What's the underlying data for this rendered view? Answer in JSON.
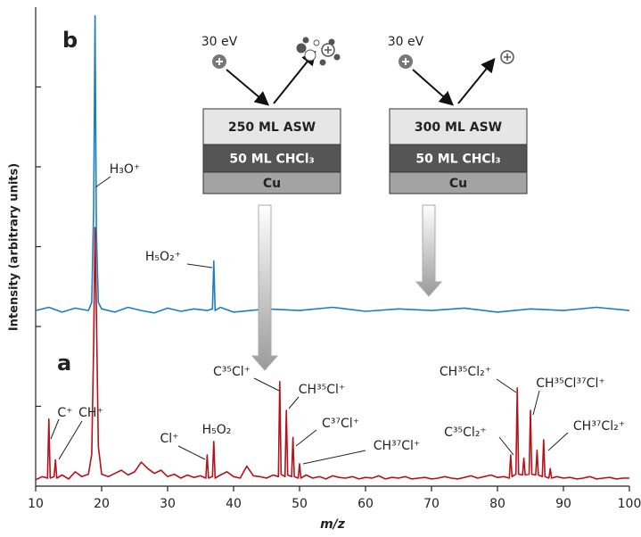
{
  "chart_data": {
    "type": "line",
    "xlabel": "m/z",
    "ylabel": "Intensity (arbitrary units)",
    "xlim": [
      10,
      100
    ],
    "xticks": [
      10,
      20,
      30,
      40,
      50,
      60,
      70,
      80,
      90,
      100
    ],
    "ylim": [
      0,
      6
    ],
    "yticks": [
      1,
      2,
      3,
      4,
      5
    ],
    "series": [
      {
        "color": "#b5121b",
        "x": [
          10,
          11,
          11.8,
          12,
          12.2,
          12.8,
          13,
          13.2,
          14,
          15,
          16,
          17,
          18,
          18.5,
          18.8,
          19,
          19.2,
          19.5,
          20,
          21,
          22,
          23,
          24,
          25,
          26,
          27,
          28,
          29,
          30,
          31,
          32,
          33,
          34,
          35,
          35.8,
          36,
          36.2,
          36.8,
          37,
          37.2,
          38,
          39,
          40,
          41,
          42,
          43,
          44,
          45,
          46,
          46.8,
          47,
          47.2,
          47.8,
          48,
          48.2,
          48.8,
          49,
          49.2,
          49.8,
          50,
          50.2,
          51,
          52,
          53,
          54,
          55,
          56,
          57,
          58,
          59,
          60,
          61,
          62,
          63,
          64,
          65,
          66,
          67,
          68,
          69,
          70,
          71,
          72,
          73,
          74,
          75,
          76,
          77,
          78,
          79,
          80,
          81,
          81.8,
          82,
          82.2,
          82.8,
          83,
          83.2,
          83.8,
          84,
          84.2,
          84.8,
          85,
          85.2,
          85.8,
          86,
          86.2,
          86.8,
          87,
          87.2,
          87.8,
          88,
          88.2,
          89,
          90,
          91,
          92,
          93,
          94,
          95,
          96,
          97,
          98,
          99,
          100
        ],
        "values": [
          0.08,
          0.12,
          0.1,
          0.84,
          0.1,
          0.12,
          0.33,
          0.1,
          0.14,
          0.09,
          0.18,
          0.12,
          0.15,
          0.4,
          1.8,
          3.24,
          2.2,
          0.5,
          0.15,
          0.12,
          0.16,
          0.2,
          0.14,
          0.18,
          0.3,
          0.22,
          0.16,
          0.2,
          0.12,
          0.15,
          0.1,
          0.14,
          0.11,
          0.13,
          0.1,
          0.39,
          0.1,
          0.12,
          0.56,
          0.1,
          0.14,
          0.18,
          0.12,
          0.1,
          0.25,
          0.13,
          0.12,
          0.1,
          0.14,
          0.12,
          1.31,
          0.15,
          0.12,
          0.95,
          0.14,
          0.12,
          0.61,
          0.12,
          0.1,
          0.28,
          0.1,
          0.14,
          0.1,
          0.12,
          0.09,
          0.13,
          0.11,
          0.1,
          0.12,
          0.09,
          0.11,
          0.1,
          0.13,
          0.09,
          0.11,
          0.1,
          0.12,
          0.09,
          0.1,
          0.11,
          0.09,
          0.1,
          0.12,
          0.1,
          0.09,
          0.11,
          0.13,
          0.1,
          0.12,
          0.14,
          0.11,
          0.12,
          0.1,
          0.39,
          0.12,
          0.15,
          1.23,
          0.15,
          0.14,
          0.35,
          0.14,
          0.15,
          0.95,
          0.15,
          0.14,
          0.45,
          0.14,
          0.12,
          0.58,
          0.12,
          0.1,
          0.22,
          0.1,
          0.12,
          0.1,
          0.11,
          0.09,
          0.1,
          0.12,
          0.09,
          0.1,
          0.11,
          0.09,
          0.1,
          0.1
        ]
      },
      {
        "color": "#1a7fc1",
        "x": [
          10,
          12,
          14,
          16,
          18,
          18.5,
          18.8,
          19,
          19.2,
          19.5,
          20,
          22,
          24,
          26,
          28,
          30,
          32,
          34,
          36,
          36.8,
          37,
          37.2,
          38,
          40,
          45,
          50,
          55,
          60,
          65,
          70,
          75,
          80,
          85,
          90,
          95,
          100
        ],
        "values": [
          2.2,
          2.24,
          2.18,
          2.23,
          2.2,
          2.3,
          3.5,
          5.89,
          3.2,
          2.3,
          2.22,
          2.18,
          2.24,
          2.2,
          2.17,
          2.23,
          2.19,
          2.22,
          2.2,
          2.22,
          2.82,
          2.2,
          2.24,
          2.18,
          2.22,
          2.2,
          2.24,
          2.19,
          2.22,
          2.2,
          2.23,
          2.18,
          2.22,
          2.2,
          2.24,
          2.2
        ]
      }
    ],
    "panel_labels": [
      "b",
      "a"
    ],
    "annotations": [
      "H₃O⁺",
      "H₅O₂⁺",
      "C⁺",
      "CH⁺",
      "Cl⁺",
      "H₅O₂",
      "C³⁵Cl⁺",
      "CH³⁵Cl⁺",
      "C³⁷Cl⁺",
      "CH³⁷Cl⁺",
      "CH³⁵Cl₂⁺",
      "C³⁵Cl₂⁺",
      "CH³⁵Cl³⁷Cl⁺",
      "CH³⁷Cl₂⁺"
    ],
    "insets": [
      {
        "energy": "30 eV",
        "layers": [
          "250 ML ASW",
          "50 ML CHCl₃",
          "Cu"
        ]
      },
      {
        "energy": "30 eV",
        "layers": [
          "300 ML ASW",
          "50 ML CHCl₃",
          "Cu"
        ]
      }
    ]
  }
}
